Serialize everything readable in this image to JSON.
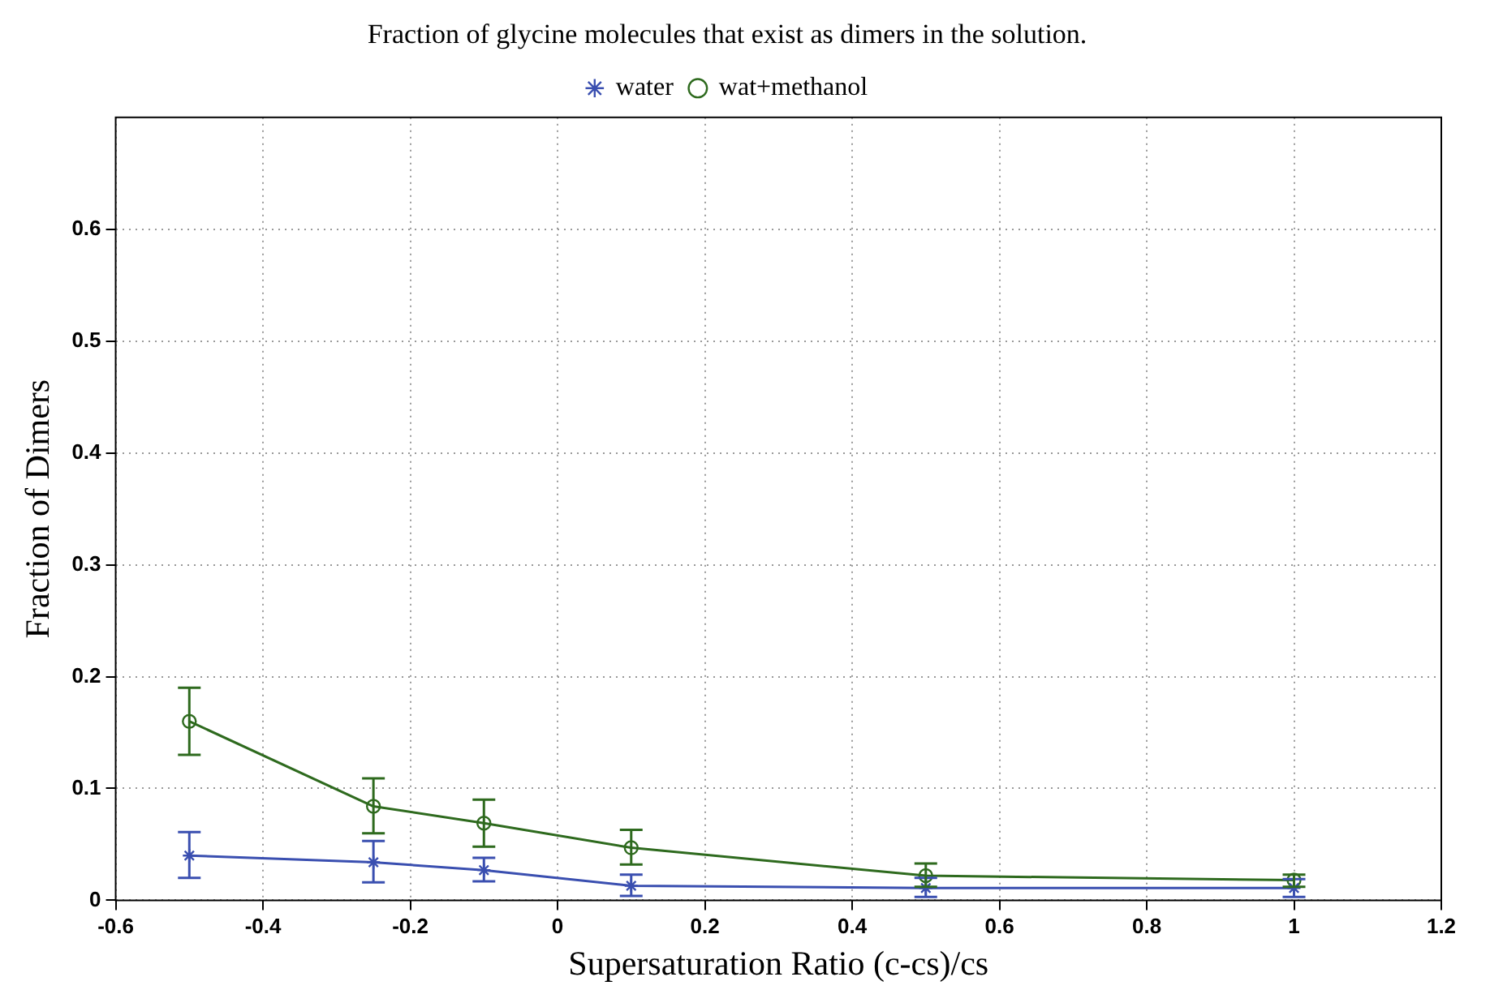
{
  "chart_data": {
    "type": "line",
    "title": "Fraction of glycine molecules that exist as dimers in the solution.",
    "xlabel": "Supersaturation Ratio (c-cs)/cs",
    "ylabel": "Fraction of Dimers",
    "x": [
      -0.5,
      -0.25,
      -0.1,
      0.1,
      0.5,
      1
    ],
    "series": [
      {
        "name": "water",
        "color": "#3a4fb0",
        "marker": "cross",
        "values": [
          0.04,
          0.034,
          0.027,
          0.013,
          0.011,
          0.011
        ],
        "errors": [
          [
            0.02,
            0.061
          ],
          [
            0.016,
            0.053
          ],
          [
            0.017,
            0.038
          ],
          [
            0.004,
            0.023
          ],
          [
            0.003,
            0.02
          ],
          [
            0.003,
            0.019
          ]
        ]
      },
      {
        "name": "wat+methanol",
        "color": "#2e6a1e",
        "marker": "circle",
        "values": [
          0.16,
          0.084,
          0.069,
          0.047,
          0.022,
          0.018
        ],
        "errors": [
          [
            0.13,
            0.19
          ],
          [
            0.06,
            0.109
          ],
          [
            0.048,
            0.09
          ],
          [
            0.032,
            0.063
          ],
          [
            0.012,
            0.033
          ],
          [
            0.012,
            0.023
          ]
        ]
      }
    ],
    "xlim": [
      -0.6,
      1.2
    ],
    "xticks": [
      -0.6,
      -0.4,
      -0.2,
      0,
      0.2,
      0.4,
      0.6,
      0.8,
      1,
      1.2
    ],
    "ylim": [
      0,
      0.7
    ],
    "yticks": [
      0,
      0.1,
      0.2,
      0.3,
      0.4,
      0.5,
      0.6
    ],
    "grid": true,
    "legend": "top",
    "line_style": "solid"
  }
}
